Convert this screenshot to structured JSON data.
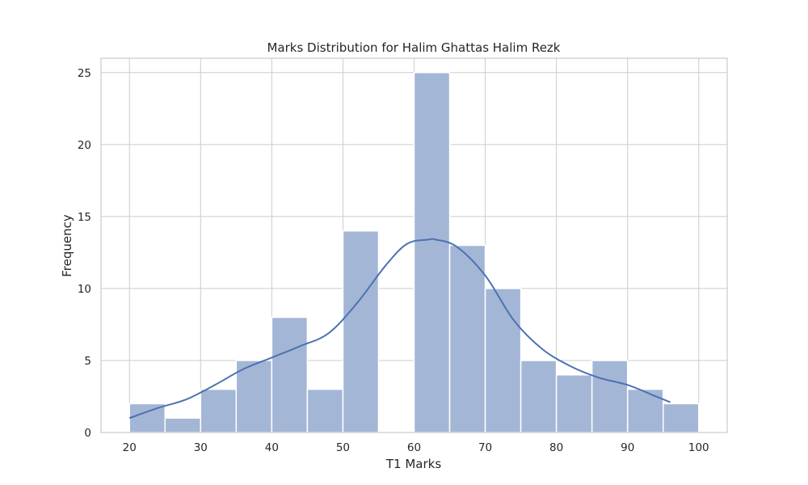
{
  "chart_data": {
    "type": "bar",
    "title": "Marks Distribution for Halim Ghattas Halim Rezk",
    "xlabel": "T1 Marks",
    "ylabel": "Frequency",
    "xlim": [
      16,
      104
    ],
    "ylim": [
      0,
      26
    ],
    "xticks": [
      20,
      30,
      40,
      50,
      60,
      70,
      80,
      90,
      100
    ],
    "yticks": [
      0,
      5,
      10,
      15,
      20,
      25
    ],
    "grid": true,
    "bins": [
      {
        "start": 20,
        "end": 25,
        "count": 2
      },
      {
        "start": 25,
        "end": 30,
        "count": 1
      },
      {
        "start": 30,
        "end": 35,
        "count": 3
      },
      {
        "start": 35,
        "end": 40,
        "count": 5
      },
      {
        "start": 40,
        "end": 45,
        "count": 8
      },
      {
        "start": 45,
        "end": 50,
        "count": 3
      },
      {
        "start": 50,
        "end": 55,
        "count": 14
      },
      {
        "start": 55,
        "end": 60,
        "count": 0
      },
      {
        "start": 60,
        "end": 65,
        "count": 25
      },
      {
        "start": 65,
        "end": 70,
        "count": 13
      },
      {
        "start": 70,
        "end": 75,
        "count": 10
      },
      {
        "start": 75,
        "end": 80,
        "count": 5
      },
      {
        "start": 80,
        "end": 85,
        "count": 4
      },
      {
        "start": 85,
        "end": 90,
        "count": 5
      },
      {
        "start": 90,
        "end": 95,
        "count": 3
      },
      {
        "start": 95,
        "end": 100,
        "count": 2
      }
    ],
    "kde": {
      "x": [
        20,
        24,
        28,
        32,
        36,
        40,
        44,
        48,
        52,
        56,
        59,
        62,
        63,
        66,
        70,
        74,
        78,
        82,
        86,
        90,
        94,
        96
      ],
      "y": [
        1.0,
        1.7,
        2.3,
        3.3,
        4.4,
        5.2,
        6.0,
        6.9,
        9.0,
        11.6,
        13.1,
        13.4,
        13.4,
        12.9,
        10.9,
        7.8,
        5.8,
        4.6,
        3.8,
        3.3,
        2.5,
        2.1
      ]
    },
    "colors": {
      "bar_fill": "#a4b6d6",
      "line": "#4c72b0"
    }
  }
}
